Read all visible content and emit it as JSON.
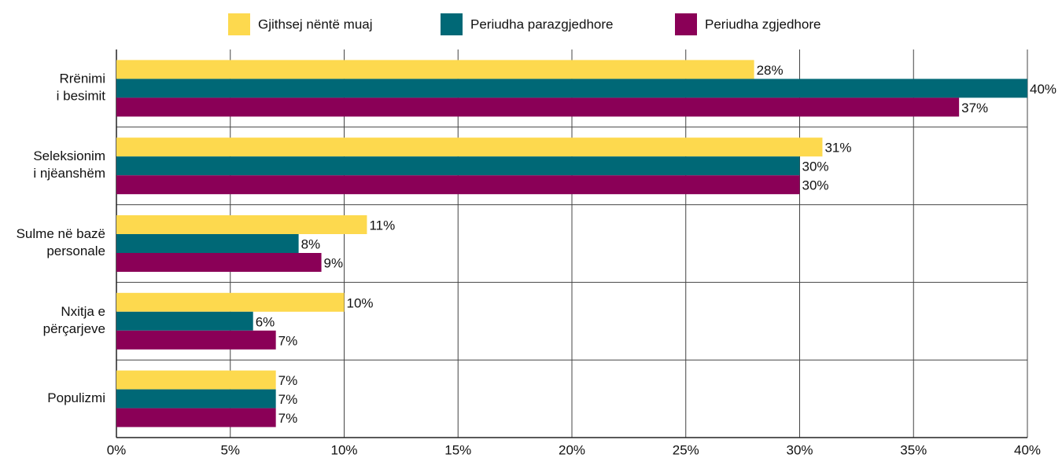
{
  "chart_data": {
    "type": "hbar",
    "categories": [
      "Rrënimi\ni besimit",
      "Seleksionim\ni njëanshëm",
      "Sulme në bazë\npersonale",
      "Nxitja e\npërçarjeve",
      "Populizmi"
    ],
    "series": [
      {
        "name": "Gjithsej nëntë muaj",
        "color": "#fdd94e",
        "values": [
          28,
          31,
          11,
          10,
          7
        ],
        "value_labels": [
          "28%",
          "31%",
          "11%",
          "10%",
          "7%"
        ]
      },
      {
        "name": "Periudha parazgjedhore",
        "color": "#006876",
        "values": [
          40,
          30,
          8,
          6,
          7
        ],
        "value_labels": [
          "40%",
          "30%",
          "8%",
          "6%",
          "7%"
        ]
      },
      {
        "name": "Periudha zgjedhore",
        "color": "#8a0057",
        "values": [
          37,
          30,
          9,
          7,
          7
        ],
        "value_labels": [
          "37%",
          "30%",
          "9%",
          "7%",
          "7%"
        ]
      }
    ],
    "xlim": [
      0,
      40
    ],
    "xticks": [
      {
        "value": 0,
        "label": "0%"
      },
      {
        "value": 5,
        "label": "5%"
      },
      {
        "value": 10,
        "label": "10%"
      },
      {
        "value": 15,
        "label": "15%"
      },
      {
        "value": 20,
        "label": "20%"
      },
      {
        "value": 25,
        "label": "25%"
      },
      {
        "value": 30,
        "label": "30%"
      },
      {
        "value": 35,
        "label": "35%"
      },
      {
        "value": 40,
        "label": "40%"
      }
    ],
    "grid": true,
    "legend": "top"
  }
}
